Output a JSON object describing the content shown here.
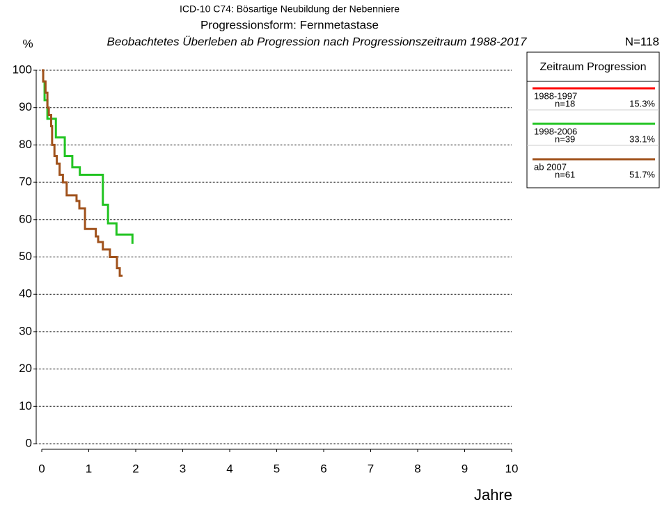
{
  "chart_data": {
    "type": "step",
    "title": "ICD-10 C74: Bösartige Neubildung der Nebenniere",
    "subtitle": "Progressionsform: Fernmetastase",
    "caption": "Beobachtetes Überleben ab Progression nach Progressionszeitraum 1988-2017",
    "total_label": "N=118",
    "y_label": "%",
    "x_label": "Jahre",
    "legend_title": "Zeitraum Progression",
    "xlim": [
      0,
      10
    ],
    "xticks": [
      0,
      1,
      2,
      3,
      4,
      5,
      6,
      7,
      8,
      9,
      10
    ],
    "ylim": [
      0,
      100
    ],
    "yticks": [
      0,
      10,
      20,
      30,
      40,
      50,
      60,
      70,
      80,
      90,
      100
    ],
    "grid": true,
    "series": [
      {
        "name": "1988-1997",
        "n_label": "n=18",
        "share_label": "15.3%",
        "color": "#ff0000",
        "x": [],
        "values": []
      },
      {
        "name": "1998-2006",
        "n_label": "n=39",
        "share_label": "33.1%",
        "color": "#22c422",
        "x": [
          0,
          0.03,
          0.06,
          0.12,
          0.3,
          0.49,
          0.65,
          0.81,
          1.3,
          1.41,
          1.59,
          1.93
        ],
        "values": [
          100,
          97,
          92,
          87,
          82,
          77,
          74,
          72,
          64,
          59,
          56,
          53.5
        ]
      },
      {
        "name": "ab 2007",
        "n_label": "n=61",
        "share_label": "51.7%",
        "color": "#a0521c",
        "x": [
          0,
          0.03,
          0.08,
          0.12,
          0.15,
          0.2,
          0.22,
          0.27,
          0.32,
          0.38,
          0.45,
          0.53,
          0.74,
          0.8,
          0.92,
          1.15,
          1.2,
          1.3,
          1.45,
          1.6,
          1.66,
          1.72
        ],
        "values": [
          100,
          97,
          94,
          90,
          88,
          85,
          80,
          77,
          75,
          72,
          70,
          66.5,
          65,
          63,
          57.5,
          55.5,
          54,
          52,
          50,
          47,
          45,
          45
        ]
      }
    ]
  }
}
